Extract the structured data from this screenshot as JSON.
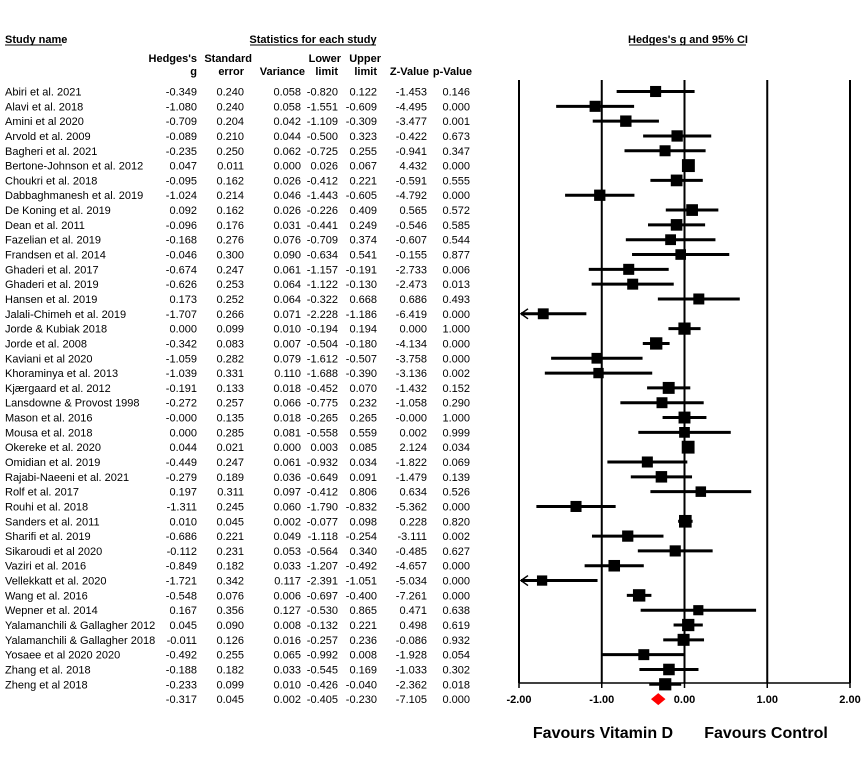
{
  "headers": {
    "study_name": "Study name",
    "stats_group": "Statistics for each study",
    "plot_title": "Hedges's g and 95% CI",
    "col_g_1": "Hedges's",
    "col_g_2": "g",
    "col_se_1": "Standard",
    "col_se_2": "error",
    "col_var": "Variance",
    "col_lower_1": "Lower",
    "col_lower_2": "limit",
    "col_upper_1": "Upper",
    "col_upper_2": "limit",
    "col_z": "Z-Value",
    "col_p": "p-Value"
  },
  "favours": {
    "left": "Favours Vitamin D",
    "right": "Favours Control"
  },
  "colors": {
    "study_marker": "#000000",
    "summary_marker": "#ff0000"
  },
  "chart_data": {
    "type": "forest",
    "x_axis": {
      "range": [
        -2.0,
        2.0
      ],
      "ticks": [
        "-2.00",
        "-1.00",
        "0.00",
        "1.00",
        "2.00"
      ],
      "tick_values": [
        -2,
        -1,
        0,
        1,
        2
      ]
    },
    "studies": [
      {
        "name": "Abiri et al. 2021",
        "g": "-0.349",
        "se": "0.240",
        "var": "0.058",
        "lower": "-0.820",
        "upper": "0.122",
        "z": "-1.453",
        "p": "0.146"
      },
      {
        "name": "Alavi et al. 2018",
        "g": "-1.080",
        "se": "0.240",
        "var": "0.058",
        "lower": "-1.551",
        "upper": "-0.609",
        "z": "-4.495",
        "p": "0.000"
      },
      {
        "name": "Amini et al 2020",
        "g": "-0.709",
        "se": "0.204",
        "var": "0.042",
        "lower": "-1.109",
        "upper": "-0.309",
        "z": "-3.477",
        "p": "0.001"
      },
      {
        "name": "Arvold et al. 2009",
        "g": "-0.089",
        "se": "0.210",
        "var": "0.044",
        "lower": "-0.500",
        "upper": "0.323",
        "z": "-0.422",
        "p": "0.673"
      },
      {
        "name": "Bagheri et al. 2021",
        "g": "-0.235",
        "se": "0.250",
        "var": "0.062",
        "lower": "-0.725",
        "upper": "0.255",
        "z": "-0.941",
        "p": "0.347"
      },
      {
        "name": "Bertone-Johnson et al. 2012",
        "g": "0.047",
        "se": "0.011",
        "var": "0.000",
        "lower": "0.026",
        "upper": "0.067",
        "z": "4.432",
        "p": "0.000"
      },
      {
        "name": "Choukri et al. 2018",
        "g": "-0.095",
        "se": "0.162",
        "var": "0.026",
        "lower": "-0.412",
        "upper": "0.221",
        "z": "-0.591",
        "p": "0.555"
      },
      {
        "name": "Dabbaghmanesh et al. 2019",
        "g": "-1.024",
        "se": "0.214",
        "var": "0.046",
        "lower": "-1.443",
        "upper": "-0.605",
        "z": "-4.792",
        "p": "0.000"
      },
      {
        "name": "De Koning et al. 2019",
        "g": "0.092",
        "se": "0.162",
        "var": "0.026",
        "lower": "-0.226",
        "upper": "0.409",
        "z": "0.565",
        "p": "0.572"
      },
      {
        "name": "Dean et al. 2011",
        "g": "-0.096",
        "se": "0.176",
        "var": "0.031",
        "lower": "-0.441",
        "upper": "0.249",
        "z": "-0.546",
        "p": "0.585"
      },
      {
        "name": "Fazelian et al. 2019",
        "g": "-0.168",
        "se": "0.276",
        "var": "0.076",
        "lower": "-0.709",
        "upper": "0.374",
        "z": "-0.607",
        "p": "0.544"
      },
      {
        "name": "Frandsen et al. 2014",
        "g": "-0.046",
        "se": "0.300",
        "var": "0.090",
        "lower": "-0.634",
        "upper": "0.541",
        "z": "-0.155",
        "p": "0.877"
      },
      {
        "name": "Ghaderi et al. 2017",
        "g": "-0.674",
        "se": "0.247",
        "var": "0.061",
        "lower": "-1.157",
        "upper": "-0.191",
        "z": "-2.733",
        "p": "0.006"
      },
      {
        "name": "Ghaderi et al. 2019",
        "g": "-0.626",
        "se": "0.253",
        "var": "0.064",
        "lower": "-1.122",
        "upper": "-0.130",
        "z": "-2.473",
        "p": "0.013"
      },
      {
        "name": "Hansen et al. 2019",
        "g": "0.173",
        "se": "0.252",
        "var": "0.064",
        "lower": "-0.322",
        "upper": "0.668",
        "z": "0.686",
        "p": "0.493"
      },
      {
        "name": "Jalali-Chimeh et al. 2019",
        "g": "-1.707",
        "se": "0.266",
        "var": "0.071",
        "lower": "-2.228",
        "upper": "-1.186",
        "z": "-6.419",
        "p": "0.000"
      },
      {
        "name": "Jorde & Kubiak 2018",
        "g": "0.000",
        "se": "0.099",
        "var": "0.010",
        "lower": "-0.194",
        "upper": "0.194",
        "z": "0.000",
        "p": "1.000"
      },
      {
        "name": "Jorde et al. 2008",
        "g": "-0.342",
        "se": "0.083",
        "var": "0.007",
        "lower": "-0.504",
        "upper": "-0.180",
        "z": "-4.134",
        "p": "0.000"
      },
      {
        "name": "Kaviani et al 2020",
        "g": "-1.059",
        "se": "0.282",
        "var": "0.079",
        "lower": "-1.612",
        "upper": "-0.507",
        "z": "-3.758",
        "p": "0.000"
      },
      {
        "name": "Khoraminya et al. 2013",
        "g": "-1.039",
        "se": "0.331",
        "var": "0.110",
        "lower": "-1.688",
        "upper": "-0.390",
        "z": "-3.136",
        "p": "0.002"
      },
      {
        "name": "Kjærgaard et al. 2012",
        "g": "-0.191",
        "se": "0.133",
        "var": "0.018",
        "lower": "-0.452",
        "upper": "0.070",
        "z": "-1.432",
        "p": "0.152"
      },
      {
        "name": "Lansdowne & Provost 1998",
        "g": "-0.272",
        "se": "0.257",
        "var": "0.066",
        "lower": "-0.775",
        "upper": "0.232",
        "z": "-1.058",
        "p": "0.290"
      },
      {
        "name": "Mason et al. 2016",
        "g": "-0.000",
        "se": "0.135",
        "var": "0.018",
        "lower": "-0.265",
        "upper": "0.265",
        "z": "-0.000",
        "p": "1.000"
      },
      {
        "name": "Mousa et al. 2018",
        "g": "0.000",
        "se": "0.285",
        "var": "0.081",
        "lower": "-0.558",
        "upper": "0.559",
        "z": "0.002",
        "p": "0.999"
      },
      {
        "name": "Okereke et al. 2020",
        "g": "0.044",
        "se": "0.021",
        "var": "0.000",
        "lower": "0.003",
        "upper": "0.085",
        "z": "2.124",
        "p": "0.034"
      },
      {
        "name": "Omidian et al. 2019",
        "g": "-0.449",
        "se": "0.247",
        "var": "0.061",
        "lower": "-0.932",
        "upper": "0.034",
        "z": "-1.822",
        "p": "0.069"
      },
      {
        "name": "Rajabi-Naeeni et al. 2021",
        "g": "-0.279",
        "se": "0.189",
        "var": "0.036",
        "lower": "-0.649",
        "upper": "0.091",
        "z": "-1.479",
        "p": "0.139"
      },
      {
        "name": "Rolf et al. 2017",
        "g": "0.197",
        "se": "0.311",
        "var": "0.097",
        "lower": "-0.412",
        "upper": "0.806",
        "z": "0.634",
        "p": "0.526"
      },
      {
        "name": "Rouhi et al. 2018",
        "g": "-1.311",
        "se": "0.245",
        "var": "0.060",
        "lower": "-1.790",
        "upper": "-0.832",
        "z": "-5.362",
        "p": "0.000"
      },
      {
        "name": "Sanders et al. 2011",
        "g": "0.010",
        "se": "0.045",
        "var": "0.002",
        "lower": "-0.077",
        "upper": "0.098",
        "z": "0.228",
        "p": "0.820"
      },
      {
        "name": "Sharifi et al. 2019",
        "g": "-0.686",
        "se": "0.221",
        "var": "0.049",
        "lower": "-1.118",
        "upper": "-0.254",
        "z": "-3.111",
        "p": "0.002"
      },
      {
        "name": "Sikaroudi et al 2020",
        "g": "-0.112",
        "se": "0.231",
        "var": "0.053",
        "lower": "-0.564",
        "upper": "0.340",
        "z": "-0.485",
        "p": "0.627"
      },
      {
        "name": "Vaziri et al. 2016",
        "g": "-0.849",
        "se": "0.182",
        "var": "0.033",
        "lower": "-1.207",
        "upper": "-0.492",
        "z": "-4.657",
        "p": "0.000"
      },
      {
        "name": "Vellekkatt et al. 2020",
        "g": "-1.721",
        "se": "0.342",
        "var": "0.117",
        "lower": "-2.391",
        "upper": "-1.051",
        "z": "-5.034",
        "p": "0.000"
      },
      {
        "name": "Wang et al. 2016",
        "g": "-0.548",
        "se": "0.076",
        "var": "0.006",
        "lower": "-0.697",
        "upper": "-0.400",
        "z": "-7.261",
        "p": "0.000"
      },
      {
        "name": "Wepner et al. 2014",
        "g": "0.167",
        "se": "0.356",
        "var": "0.127",
        "lower": "-0.530",
        "upper": "0.865",
        "z": "0.471",
        "p": "0.638"
      },
      {
        "name": "Yalamanchili & Gallagher 2012",
        "g": "0.045",
        "se": "0.090",
        "var": "0.008",
        "lower": "-0.132",
        "upper": "0.221",
        "z": "0.498",
        "p": "0.619"
      },
      {
        "name": "Yalamanchili & Gallagher 2018",
        "g": "-0.011",
        "se": "0.126",
        "var": "0.016",
        "lower": "-0.257",
        "upper": "0.236",
        "z": "-0.086",
        "p": "0.932"
      },
      {
        "name": "Yosaee et al 2020 2020",
        "g": "-0.492",
        "se": "0.255",
        "var": "0.065",
        "lower": "-0.992",
        "upper": "0.008",
        "z": "-1.928",
        "p": "0.054"
      },
      {
        "name": "Zhang et al. 2018",
        "g": "-0.188",
        "se": "0.182",
        "var": "0.033",
        "lower": "-0.545",
        "upper": "0.169",
        "z": "-1.033",
        "p": "0.302"
      },
      {
        "name": "Zheng et al 2018",
        "g": "-0.233",
        "se": "0.099",
        "var": "0.010",
        "lower": "-0.426",
        "upper": "-0.040",
        "z": "-2.362",
        "p": "0.018"
      }
    ],
    "summary": {
      "g": "-0.317",
      "se": "0.045",
      "var": "0.002",
      "lower": "-0.405",
      "upper": "-0.230",
      "z": "-7.105",
      "p": "0.000"
    }
  }
}
